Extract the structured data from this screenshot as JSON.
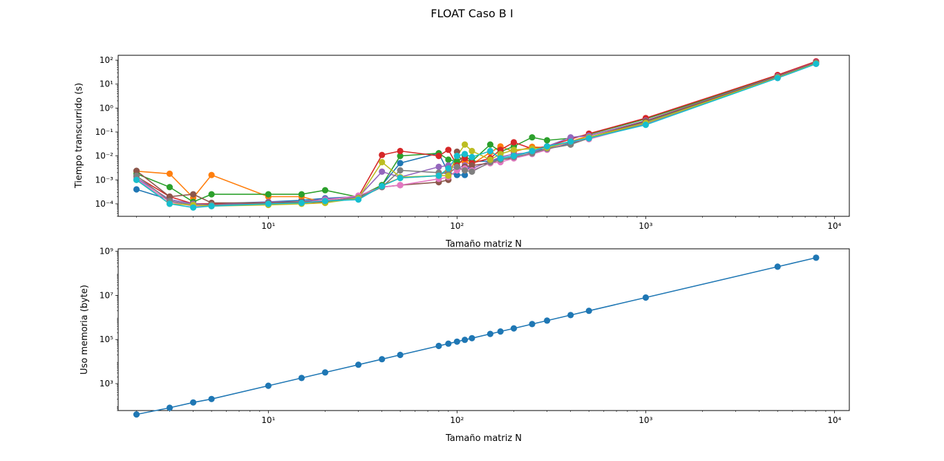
{
  "figure": {
    "title": "FLOAT Caso B I"
  },
  "chart_data": [
    {
      "type": "line",
      "xlabel": "Tamaño matriz N",
      "ylabel": "Tiempo transcurrido (s)",
      "xscale": "log",
      "yscale": "log",
      "xlim": [
        1.6,
        12000
      ],
      "ylim": [
        3e-05,
        160
      ],
      "xticks": [
        {
          "v": 10,
          "label": "10¹"
        },
        {
          "v": 100,
          "label": "10²"
        },
        {
          "v": 1000,
          "label": "10³"
        },
        {
          "v": 10000,
          "label": "10⁴"
        }
      ],
      "yticks": [
        {
          "v": 0.0001,
          "label": "10⁻⁴"
        },
        {
          "v": 0.001,
          "label": "10⁻³"
        },
        {
          "v": 0.01,
          "label": "10⁻²"
        },
        {
          "v": 0.1,
          "label": "10⁻¹"
        },
        {
          "v": 1,
          "label": "10⁰"
        },
        {
          "v": 10,
          "label": "10¹"
        },
        {
          "v": 100,
          "label": "10²"
        }
      ],
      "x": [
        2,
        3,
        4,
        5,
        10,
        15,
        20,
        30,
        40,
        50,
        80,
        90,
        100,
        110,
        120,
        150,
        170,
        200,
        250,
        300,
        400,
        500,
        1000,
        5000,
        8000
      ],
      "series": [
        {
          "color": "#1f77b4",
          "values": [
            0.0004,
            0.00015,
            0.0001,
            0.0001,
            0.00012,
            0.00014,
            0.00017,
            0.0002,
            0.0006,
            0.005,
            0.013,
            0.002,
            0.0016,
            0.0016,
            0.006,
            0.006,
            0.008,
            0.01,
            0.015,
            0.02,
            0.035,
            0.06,
            0.25,
            20,
            75
          ]
        },
        {
          "color": "#ff7f0e",
          "values": [
            0.0023,
            0.0018,
            0.00018,
            0.0016,
            0.0002,
            0.0002,
            0.00011,
            0.00019,
            0.0006,
            0.0012,
            0.0015,
            0.0025,
            0.006,
            0.0055,
            0.0045,
            0.014,
            0.025,
            0.015,
            0.024,
            0.022,
            0.04,
            0.07,
            0.3,
            22,
            80
          ]
        },
        {
          "color": "#2ca02c",
          "values": [
            0.0018,
            0.0005,
            0.00012,
            0.00025,
            0.00025,
            0.00025,
            0.00037,
            0.00019,
            0.0006,
            0.01,
            0.013,
            0.007,
            0.006,
            0.01,
            0.006,
            0.03,
            0.015,
            0.025,
            0.06,
            0.045,
            0.055,
            0.08,
            0.35,
            22,
            80
          ]
        },
        {
          "color": "#d62728",
          "values": [
            0.0014,
            0.0002,
            0.0001,
            0.0001,
            0.0001,
            0.00011,
            0.00012,
            0.0002,
            0.011,
            0.016,
            0.01,
            0.018,
            0.004,
            0.008,
            0.005,
            0.008,
            0.018,
            0.037,
            0.02,
            0.025,
            0.05,
            0.085,
            0.38,
            24,
            90
          ]
        },
        {
          "color": "#9467bd",
          "values": [
            0.0012,
            0.00015,
            0.0001,
            9e-05,
            0.00012,
            0.00012,
            0.00016,
            0.00019,
            0.0022,
            0.0013,
            0.0035,
            0.004,
            0.003,
            0.004,
            0.003,
            0.006,
            0.009,
            0.012,
            0.014,
            0.025,
            0.06,
            0.07,
            0.3,
            21,
            82
          ]
        },
        {
          "color": "#8c564b",
          "values": [
            0.0024,
            0.0002,
            0.00025,
            0.00011,
            0.00011,
            0.00012,
            0.00013,
            0.00017,
            0.0005,
            0.0006,
            0.0008,
            0.001,
            0.015,
            0.0035,
            0.004,
            0.005,
            0.007,
            0.008,
            0.013,
            0.02,
            0.03,
            0.06,
            0.28,
            20,
            78
          ]
        },
        {
          "color": "#e377c2",
          "values": [
            0.0011,
            0.00012,
            8e-05,
            8e-05,
            0.0001,
            0.00011,
            0.00014,
            0.00022,
            0.0005,
            0.0006,
            0.0011,
            0.0013,
            0.0025,
            0.003,
            0.0025,
            0.005,
            0.0055,
            0.008,
            0.012,
            0.018,
            0.04,
            0.05,
            0.22,
            18,
            70
          ]
        },
        {
          "color": "#7f7f7f",
          "values": [
            0.0015,
            0.00013,
            9e-05,
            9e-05,
            0.0001,
            0.00011,
            0.00013,
            0.00018,
            0.0005,
            0.0025,
            0.002,
            0.0018,
            0.0035,
            0.0025,
            0.0022,
            0.0055,
            0.007,
            0.009,
            0.013,
            0.02,
            0.03,
            0.055,
            0.23,
            19,
            72
          ]
        },
        {
          "color": "#bcbd22",
          "values": [
            0.001,
            0.0001,
            9e-05,
            8e-05,
            9e-05,
            0.0001,
            0.00011,
            0.00017,
            0.0055,
            0.0013,
            0.0015,
            0.0015,
            0.01,
            0.03,
            0.016,
            0.007,
            0.012,
            0.018,
            0.02,
            0.022,
            0.04,
            0.06,
            0.24,
            19,
            73
          ]
        },
        {
          "color": "#17becf",
          "values": [
            0.001,
            0.0001,
            7e-05,
            8e-05,
            0.0001,
            0.00011,
            0.00013,
            0.00015,
            0.00055,
            0.0012,
            0.0015,
            0.003,
            0.01,
            0.012,
            0.009,
            0.016,
            0.008,
            0.01,
            0.016,
            0.025,
            0.04,
            0.055,
            0.2,
            18,
            70
          ]
        }
      ]
    },
    {
      "type": "line",
      "xlabel": "Tamaño matriz N",
      "ylabel": "Uso memoria (byte)",
      "xscale": "log",
      "yscale": "log",
      "xlim": [
        1.6,
        12000
      ],
      "ylim": [
        60,
        1300000000
      ],
      "xticks": [
        {
          "v": 10,
          "label": "10¹"
        },
        {
          "v": 100,
          "label": "10²"
        },
        {
          "v": 1000,
          "label": "10³"
        },
        {
          "v": 10000,
          "label": "10⁴"
        }
      ],
      "yticks": [
        {
          "v": 1000,
          "label": "10³"
        },
        {
          "v": 100000,
          "label": "10⁵"
        },
        {
          "v": 10000000,
          "label": "10⁷"
        },
        {
          "v": 1000000000,
          "label": "10⁹"
        }
      ],
      "x": [
        2,
        3,
        4,
        5,
        10,
        15,
        20,
        30,
        40,
        50,
        80,
        90,
        100,
        110,
        120,
        150,
        170,
        200,
        250,
        300,
        400,
        500,
        1000,
        5000,
        8000
      ],
      "series": [
        {
          "color": "#1f77b4",
          "values": [
            40,
            80,
            140,
            200,
            800,
            1800,
            3200,
            7200,
            12800,
            20000,
            51200,
            64800,
            80000,
            96800,
            115200,
            180000,
            231200,
            320000,
            500000,
            720000,
            1280000,
            2000000,
            8000000,
            200000000,
            512000000
          ]
        }
      ]
    }
  ]
}
